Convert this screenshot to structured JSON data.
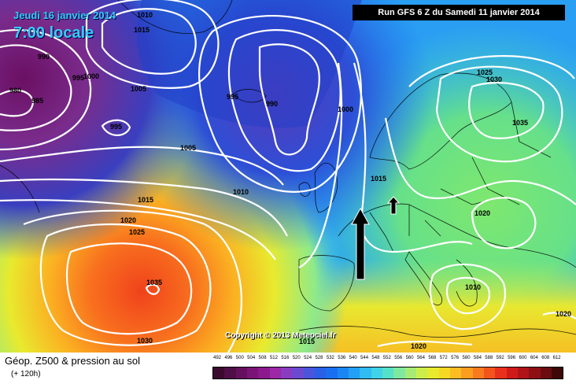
{
  "header": {
    "date": "Jeudi 16 janvier 2014",
    "time": "7:00 locale",
    "run": "Run GFS 6 Z du Samedi 11 janvier 2014"
  },
  "copyright": "Copyright © 2013 Meteociel.fr",
  "footer": {
    "title": "Géop. Z500 & pression au sol",
    "subtitle": "(+ 120h)"
  },
  "scale": {
    "labels": [
      "492",
      "496",
      "500",
      "504",
      "508",
      "512",
      "516",
      "520",
      "524",
      "528",
      "532",
      "536",
      "540",
      "544",
      "548",
      "552",
      "556",
      "560",
      "564",
      "568",
      "572",
      "576",
      "580",
      "584",
      "588",
      "592",
      "596",
      "600",
      "604",
      "608",
      "612"
    ],
    "colors": [
      "#3b0a2f",
      "#500e46",
      "#65105e",
      "#7a1476",
      "#8c1a8e",
      "#9c28a6",
      "#8a3cc0",
      "#6b4ad0",
      "#4a55dc",
      "#2a5fe6",
      "#1a6ff0",
      "#1a86f4",
      "#22a0f6",
      "#30bbf2",
      "#3fd2e8",
      "#55e0c8",
      "#7ee8a0",
      "#a6ec74",
      "#cbee4c",
      "#e8ea2e",
      "#f6d724",
      "#fbbd22",
      "#fb9e20",
      "#f87a1e",
      "#f2541c",
      "#e8301c",
      "#d01a1a",
      "#b01418",
      "#8e1014",
      "#6a0c10",
      "#3e0808"
    ]
  },
  "isobar_labels": [
    {
      "text": "1010"
    },
    {
      "text": "1015"
    },
    {
      "text": "990"
    },
    {
      "text": "995"
    },
    {
      "text": "1000"
    },
    {
      "text": "980"
    },
    {
      "text": "985"
    },
    {
      "text": "1005"
    },
    {
      "text": "995"
    },
    {
      "text": "995"
    },
    {
      "text": "990"
    },
    {
      "text": "1000"
    },
    {
      "text": "1005"
    },
    {
      "text": "1010"
    },
    {
      "text": "1015"
    },
    {
      "text": "1020"
    },
    {
      "text": "1025"
    },
    {
      "text": "1035"
    },
    {
      "text": "1030"
    },
    {
      "text": "1015"
    },
    {
      "text": "1025"
    },
    {
      "text": "1030"
    },
    {
      "text": "1035"
    },
    {
      "text": "1020"
    },
    {
      "text": "1010"
    },
    {
      "text": "1020"
    },
    {
      "text": "1020"
    },
    {
      "text": "1015"
    }
  ]
}
